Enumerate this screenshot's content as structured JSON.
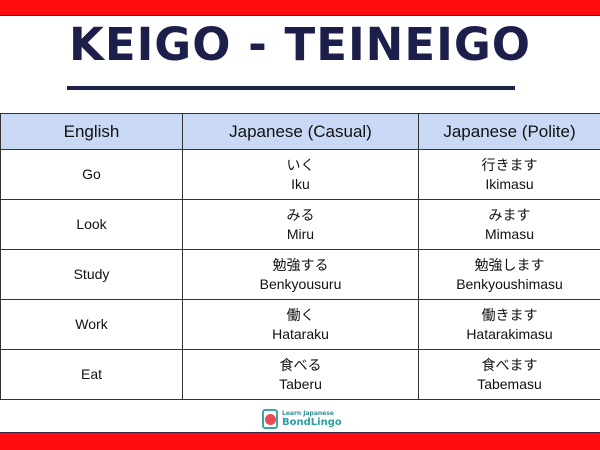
{
  "title": "KEIGO - TEINEIGO",
  "headers": [
    "English",
    "Japanese (Casual)",
    "Japanese (Polite)"
  ],
  "rows": [
    {
      "en": "Go",
      "casual_jp": "いく",
      "casual_ro": "Iku",
      "polite_jp": "行きます",
      "polite_ro": "Ikimasu"
    },
    {
      "en": "Look",
      "casual_jp": "みる",
      "casual_ro": "Miru",
      "polite_jp": "みます",
      "polite_ro": "Mimasu"
    },
    {
      "en": "Study",
      "casual_jp": "勉強する",
      "casual_ro": "Benkyousuru",
      "polite_jp": "勉強します",
      "polite_ro": "Benkyoushimasu"
    },
    {
      "en": "Work",
      "casual_jp": "働く",
      "casual_ro": "Hataraku",
      "polite_jp": "働きます",
      "polite_ro": "Hatarakimasu"
    },
    {
      "en": "Eat",
      "casual_jp": "食べる",
      "casual_ro": "Taberu",
      "polite_jp": "食べます",
      "polite_ro": "Tabemasu"
    }
  ],
  "logo": {
    "top": "Learn Japanese",
    "brand": "BondLingo"
  },
  "colors": {
    "banner": "#fe0e0e",
    "title": "#1c1f4a",
    "header_bg": "#c9d9f5"
  }
}
